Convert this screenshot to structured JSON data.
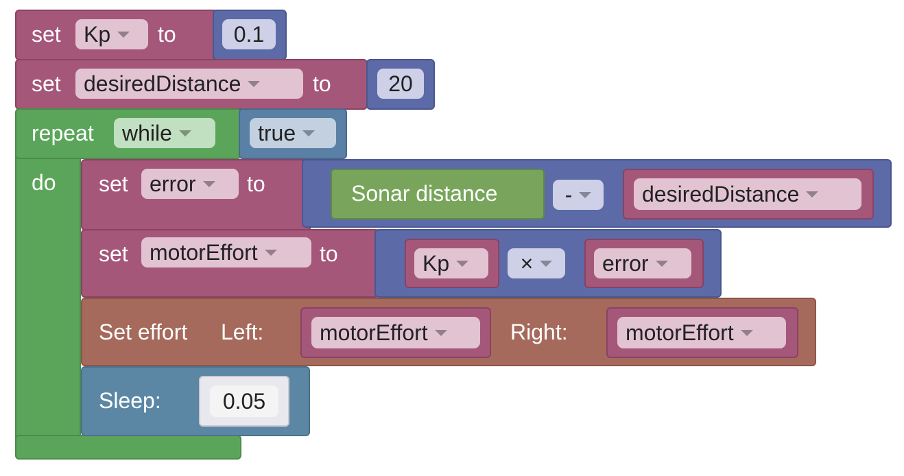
{
  "blocks": {
    "set_kp": {
      "keyword": "set",
      "variable": "Kp",
      "to": "to",
      "value": "0.1"
    },
    "set_desired": {
      "keyword": "set",
      "variable": "desiredDistance",
      "to": "to",
      "value": "20"
    },
    "repeat": {
      "keyword": "repeat",
      "mode": "while",
      "condition": "true",
      "do": "do"
    },
    "set_error": {
      "keyword": "set",
      "variable": "error",
      "to": "to",
      "sensor": "Sonar distance",
      "operator": "-",
      "operand": "desiredDistance"
    },
    "set_motor": {
      "keyword": "set",
      "variable": "motorEffort",
      "to": "to",
      "left_var": "Kp",
      "operator": "×",
      "right_var": "error"
    },
    "set_effort": {
      "label": "Set effort",
      "left_label": "Left:",
      "left_var": "motorEffort",
      "right_label": "Right:",
      "right_var": "motorEffort"
    },
    "sleep": {
      "label": "Sleep:",
      "value": "0.05"
    }
  },
  "colors": {
    "variables": "#a5577a",
    "math": "#5c6aa8",
    "loops": "#5ba55b",
    "logic": "#5b80a5",
    "sensor": "#78a55b",
    "motor": "#a56a5b",
    "sleep": "#5b87a5"
  }
}
